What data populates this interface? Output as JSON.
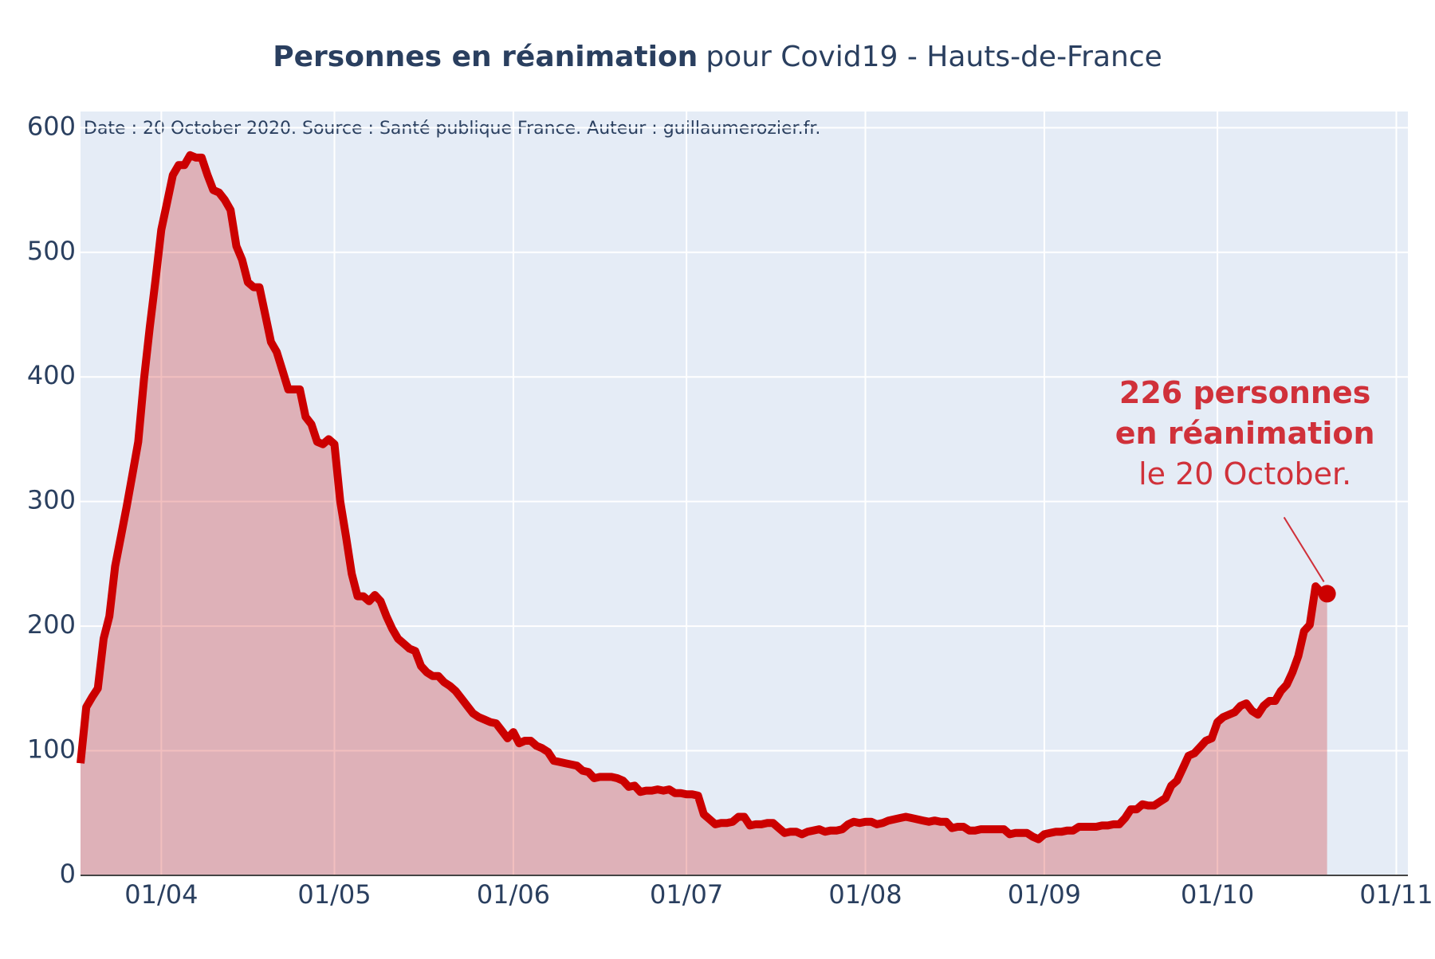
{
  "chart_data": {
    "type": "area",
    "title_bold": "Personnes en réanimation",
    "title_rest": "pour Covid19 - Hauts-de-France",
    "subtitle": "Date : 20 October 2020. Source : Santé publique France. Auteur : guillaumerozier.fr.",
    "color": "#cc0000",
    "fill": "rgba(204,0,0,0.25)",
    "annotation": {
      "lines": [
        "226 personnes",
        "en réanimation",
        "le 20 October."
      ],
      "color": "#d0313a"
    },
    "xlim": [
      "18/03",
      "03/11"
    ],
    "xticks": [
      "01/04",
      "01/05",
      "01/06",
      "01/07",
      "01/08",
      "01/09",
      "01/10",
      "01/11"
    ],
    "ylim": [
      0,
      613
    ],
    "yticks": [
      0,
      100,
      200,
      300,
      400,
      500,
      600
    ],
    "grid": true,
    "x": [
      "18/03",
      "19/03",
      "20/03",
      "21/03",
      "22/03",
      "23/03",
      "24/03",
      "25/03",
      "26/03",
      "27/03",
      "28/03",
      "29/03",
      "30/03",
      "31/03",
      "01/04",
      "02/04",
      "03/04",
      "04/04",
      "05/04",
      "06/04",
      "07/04",
      "08/04",
      "09/04",
      "10/04",
      "11/04",
      "12/04",
      "13/04",
      "14/04",
      "15/04",
      "16/04",
      "17/04",
      "18/04",
      "19/04",
      "20/04",
      "21/04",
      "22/04",
      "23/04",
      "24/04",
      "25/04",
      "26/04",
      "27/04",
      "28/04",
      "29/04",
      "30/04",
      "01/05",
      "02/05",
      "03/05",
      "04/05",
      "05/05",
      "06/05",
      "07/05",
      "08/05",
      "09/05",
      "10/05",
      "11/05",
      "12/05",
      "13/05",
      "14/05",
      "15/05",
      "16/05",
      "17/05",
      "18/05",
      "19/05",
      "20/05",
      "21/05",
      "22/05",
      "23/05",
      "24/05",
      "25/05",
      "26/05",
      "27/05",
      "28/05",
      "29/05",
      "30/05",
      "31/05",
      "01/06",
      "02/06",
      "03/06",
      "04/06",
      "05/06",
      "06/06",
      "07/06",
      "08/06",
      "09/06",
      "10/06",
      "11/06",
      "12/06",
      "13/06",
      "14/06",
      "15/06",
      "16/06",
      "17/06",
      "18/06",
      "19/06",
      "20/06",
      "21/06",
      "22/06",
      "23/06",
      "24/06",
      "25/06",
      "26/06",
      "27/06",
      "28/06",
      "29/06",
      "30/06",
      "01/07",
      "02/07",
      "03/07",
      "04/07",
      "05/07",
      "06/07",
      "07/07",
      "08/07",
      "09/07",
      "10/07",
      "11/07",
      "12/07",
      "13/07",
      "14/07",
      "15/07",
      "16/07",
      "17/07",
      "18/07",
      "19/07",
      "20/07",
      "21/07",
      "22/07",
      "23/07",
      "24/07",
      "25/07",
      "26/07",
      "27/07",
      "28/07",
      "29/07",
      "30/07",
      "31/07",
      "01/08",
      "02/08",
      "03/08",
      "04/08",
      "05/08",
      "06/08",
      "07/08",
      "08/08",
      "09/08",
      "10/08",
      "11/08",
      "12/08",
      "13/08",
      "14/08",
      "15/08",
      "16/08",
      "17/08",
      "18/08",
      "19/08",
      "20/08",
      "21/08",
      "22/08",
      "23/08",
      "24/08",
      "25/08",
      "26/08",
      "27/08",
      "28/08",
      "29/08",
      "30/08",
      "31/08",
      "01/09",
      "02/09",
      "03/09",
      "04/09",
      "05/09",
      "06/09",
      "07/09",
      "08/09",
      "09/09",
      "10/09",
      "11/09",
      "12/09",
      "13/09",
      "14/09",
      "15/09",
      "16/09",
      "17/09",
      "18/09",
      "19/09",
      "20/09",
      "21/09",
      "22/09",
      "23/09",
      "24/09",
      "25/09",
      "26/09",
      "27/09",
      "28/09",
      "29/09",
      "30/09",
      "01/10",
      "02/10",
      "03/10",
      "04/10",
      "05/10",
      "06/10",
      "07/10",
      "08/10",
      "09/10",
      "10/10",
      "11/10",
      "12/10",
      "13/10",
      "14/10",
      "15/10",
      "16/10",
      "17/10",
      "18/10",
      "19/10",
      "20/10"
    ],
    "values": [
      90,
      135,
      143,
      150,
      190,
      208,
      248,
      272,
      296,
      322,
      348,
      398,
      440,
      478,
      518,
      540,
      562,
      570,
      570,
      578,
      576,
      576,
      562,
      550,
      548,
      542,
      534,
      505,
      494,
      476,
      472,
      472,
      450,
      428,
      420,
      405,
      390,
      390,
      390,
      368,
      362,
      348,
      346,
      350,
      346,
      300,
      272,
      242,
      224,
      224,
      220,
      225,
      220,
      208,
      198,
      190,
      186,
      182,
      180,
      168,
      163,
      160,
      160,
      155,
      152,
      148,
      142,
      136,
      130,
      127,
      125,
      123,
      122,
      116,
      110,
      115,
      106,
      108,
      108,
      104,
      102,
      99,
      92,
      91,
      90,
      89,
      88,
      84,
      83,
      78,
      79,
      79,
      79,
      78,
      76,
      71,
      72,
      67,
      68,
      68,
      69,
      68,
      69,
      66,
      66,
      65,
      65,
      64,
      49,
      45,
      41,
      42,
      42,
      43,
      47,
      47,
      40,
      41,
      41,
      42,
      42,
      38,
      34,
      35,
      35,
      33,
      35,
      36,
      37,
      35,
      36,
      36,
      37,
      41,
      43,
      42,
      43,
      43,
      41,
      42,
      44,
      45,
      46,
      47,
      46,
      45,
      44,
      43,
      44,
      43,
      43,
      38,
      39,
      39,
      36,
      36,
      37,
      37,
      37,
      37,
      37,
      33,
      34,
      34,
      34,
      31,
      29,
      33,
      34,
      35,
      35,
      36,
      36,
      39,
      39,
      39,
      39,
      40,
      40,
      41,
      41,
      46,
      53,
      53,
      57,
      56,
      56,
      59,
      62,
      72,
      76,
      86,
      96,
      98,
      103,
      108,
      110,
      123,
      127,
      129,
      131,
      136,
      138,
      132,
      129,
      136,
      140,
      140,
      148,
      153,
      163,
      176,
      196,
      201,
      232,
      227,
      226
    ]
  }
}
